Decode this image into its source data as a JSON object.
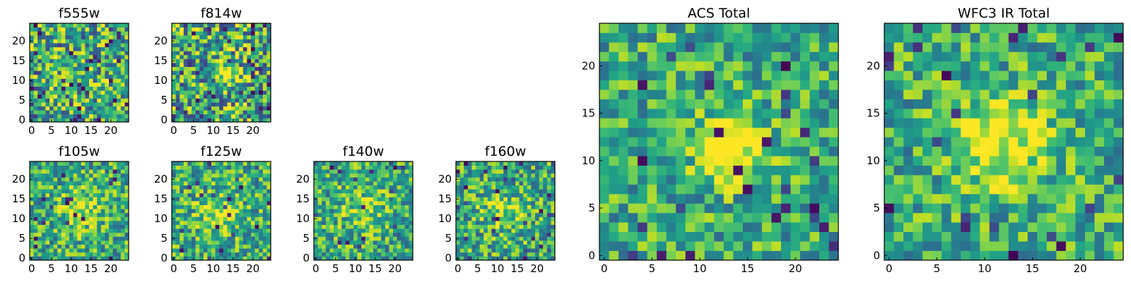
{
  "chart_data": [
    {
      "type": "heatmap",
      "title": "f555w",
      "grid": [
        25,
        25
      ],
      "xticks": [
        0,
        5,
        10,
        15,
        20
      ],
      "yticks": [
        0,
        5,
        10,
        15,
        20
      ],
      "colormap": "viridis",
      "seed": 11,
      "noise": 0.55,
      "dark_fraction": 0.06,
      "blob": null
    },
    {
      "type": "heatmap",
      "title": "f814w",
      "grid": [
        25,
        25
      ],
      "xticks": [
        0,
        5,
        10,
        15,
        20
      ],
      "yticks": [
        0,
        5,
        10,
        15,
        20
      ],
      "colormap": "viridis",
      "seed": 23,
      "noise": 0.6,
      "dark_fraction": 0.07,
      "blob": {
        "x": 13,
        "y": 11.5,
        "sigma": 2.2,
        "amp": 0.45
      }
    },
    {
      "type": "heatmap",
      "title": "f105w",
      "grid": [
        25,
        25
      ],
      "xticks": [
        0,
        5,
        10,
        15,
        20
      ],
      "yticks": [
        0,
        5,
        10,
        15,
        20
      ],
      "colormap": "viridis",
      "seed": 37,
      "noise": 0.45,
      "dark_fraction": 0.03,
      "blob": {
        "x": 12,
        "y": 12.5,
        "sigma": 3.5,
        "amp": 0.3
      }
    },
    {
      "type": "heatmap",
      "title": "f125w",
      "grid": [
        25,
        25
      ],
      "xticks": [
        0,
        5,
        10,
        15,
        20
      ],
      "yticks": [
        0,
        5,
        10,
        15,
        20
      ],
      "colormap": "viridis",
      "seed": 41,
      "noise": 0.45,
      "dark_fraction": 0.03,
      "blob": {
        "x": 11,
        "y": 11,
        "sigma": 3.5,
        "amp": 0.25
      }
    },
    {
      "type": "heatmap",
      "title": "f140w",
      "grid": [
        25,
        25
      ],
      "xticks": [
        0,
        5,
        10,
        15,
        20
      ],
      "yticks": [
        0,
        5,
        10,
        15,
        20
      ],
      "colormap": "viridis",
      "seed": 53,
      "noise": 0.45,
      "dark_fraction": 0.03,
      "blob": {
        "x": 12,
        "y": 12,
        "sigma": 4,
        "amp": 0.2
      }
    },
    {
      "type": "heatmap",
      "title": "f160w",
      "grid": [
        25,
        25
      ],
      "xticks": [
        0,
        5,
        10,
        15,
        20
      ],
      "yticks": [
        0,
        5,
        10,
        15,
        20
      ],
      "colormap": "viridis",
      "seed": 67,
      "noise": 0.45,
      "dark_fraction": 0.04,
      "blob": {
        "x": 11,
        "y": 12,
        "sigma": 3.5,
        "amp": 0.25
      }
    },
    {
      "type": "heatmap",
      "title": "ACS Total",
      "grid": [
        25,
        25
      ],
      "xticks": [
        0,
        5,
        10,
        15,
        20
      ],
      "yticks": [
        0,
        5,
        10,
        15,
        20
      ],
      "colormap": "viridis",
      "seed": 79,
      "noise": 0.4,
      "dark_fraction": 0.045,
      "blob": {
        "x": 13,
        "y": 11.5,
        "sigma": 2.3,
        "amp": 0.55
      }
    },
    {
      "type": "heatmap",
      "title": "WFC3 IR Total",
      "grid": [
        25,
        25
      ],
      "xticks": [
        0,
        5,
        10,
        15,
        20
      ],
      "yticks": [
        0,
        5,
        10,
        15,
        20
      ],
      "colormap": "viridis",
      "seed": 97,
      "noise": 0.4,
      "dark_fraction": 0.04,
      "blob": {
        "x": 12,
        "y": 12,
        "sigma": 3.2,
        "amp": 0.45
      }
    }
  ]
}
